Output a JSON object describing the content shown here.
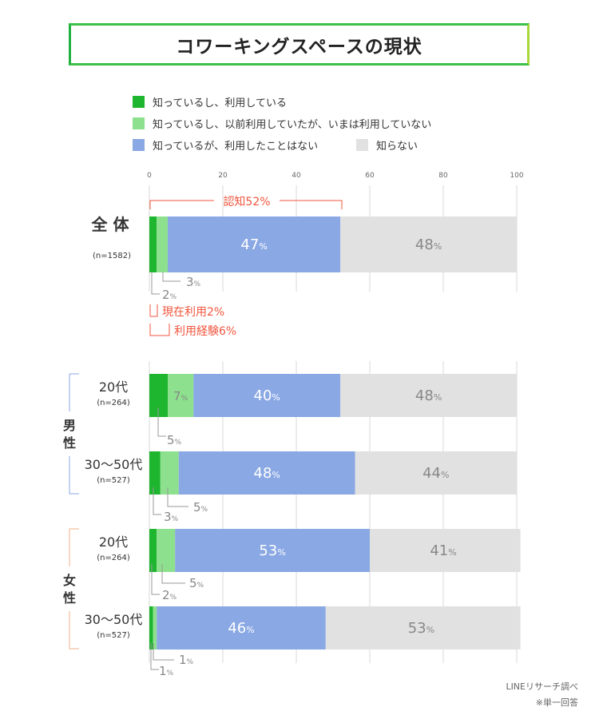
{
  "title": "コワーキングスペースの現状",
  "source": "LINEリサーチ調べ",
  "note": "※単一回答",
  "pct_unit": "%",
  "colors": {
    "using": "#1eb52f",
    "used_before": "#8de08d",
    "not_used": "#8aa8e4",
    "unaware": "#e1e1e1",
    "annotation": "#f0553d",
    "line": "#999999"
  },
  "legend": [
    {
      "label": "知っているし、利用している",
      "color": "#1eb52f"
    },
    {
      "label": "知っているし、以前利用していたが、いまは利用していない",
      "color": "#8de08d"
    },
    {
      "label": "知っているが、利用したことはない",
      "color": "#8aa8e4"
    },
    {
      "label": "知らない",
      "color": "#e1e1e1"
    }
  ],
  "groups": [
    {
      "label": "男\n性"
    },
    {
      "label": "女\n性"
    }
  ],
  "annotations": {
    "awareness": "認知52%",
    "current_use": "現在利用2%",
    "experience": "利用経験6%"
  },
  "chart_data": {
    "type": "bar",
    "orientation": "horizontal",
    "stacked": true,
    "xlim": [
      0,
      100
    ],
    "xticks": [
      0,
      20,
      40,
      60,
      80,
      100
    ],
    "categories": [
      "全 体",
      "20代",
      "30〜50代",
      "20代",
      "30〜50代"
    ],
    "sample_sizes": [
      "(n=1582)",
      "(n=264)",
      "(n=527)",
      "(n=264)",
      "(n=527)"
    ],
    "series": [
      {
        "name": "知っているし、利用している",
        "values": [
          2,
          5,
          3,
          2,
          1
        ]
      },
      {
        "name": "知っているし、以前利用していたが、いまは利用していない",
        "values": [
          3,
          7,
          5,
          5,
          1
        ]
      },
      {
        "name": "知っているが、利用したことはない",
        "values": [
          47,
          40,
          48,
          53,
          46
        ]
      },
      {
        "name": "知らない",
        "values": [
          48,
          48,
          44,
          41,
          53
        ]
      }
    ]
  }
}
